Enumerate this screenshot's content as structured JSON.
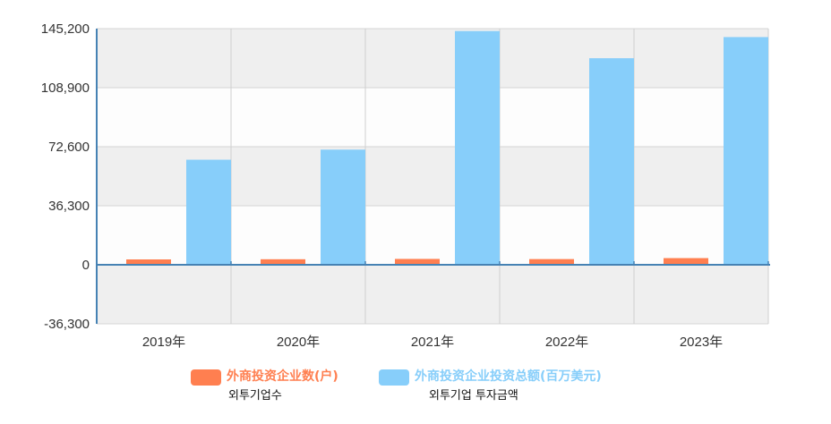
{
  "chart_data": {
    "type": "bar",
    "categories": [
      "2019年",
      "2020年",
      "2021年",
      "2022年",
      "2023年"
    ],
    "series": [
      {
        "name": "外商投资企业数(户)",
        "subtitle": "외투기업수",
        "color": "#ff7f50",
        "values": [
          3300,
          3400,
          3600,
          3500,
          4100
        ]
      },
      {
        "name": "外商投资企业投资总额(百万美元)",
        "subtitle": "외투기업 투자금액",
        "color": "#87cefa",
        "values": [
          64600,
          70800,
          143700,
          127000,
          140000
        ]
      }
    ],
    "yticks": [
      "145,200",
      "108,900",
      "72,600",
      "36,300",
      "0",
      "-36,300"
    ],
    "ylim": [
      -36300,
      145200
    ],
    "grid": true,
    "legend_position": "bottom"
  }
}
